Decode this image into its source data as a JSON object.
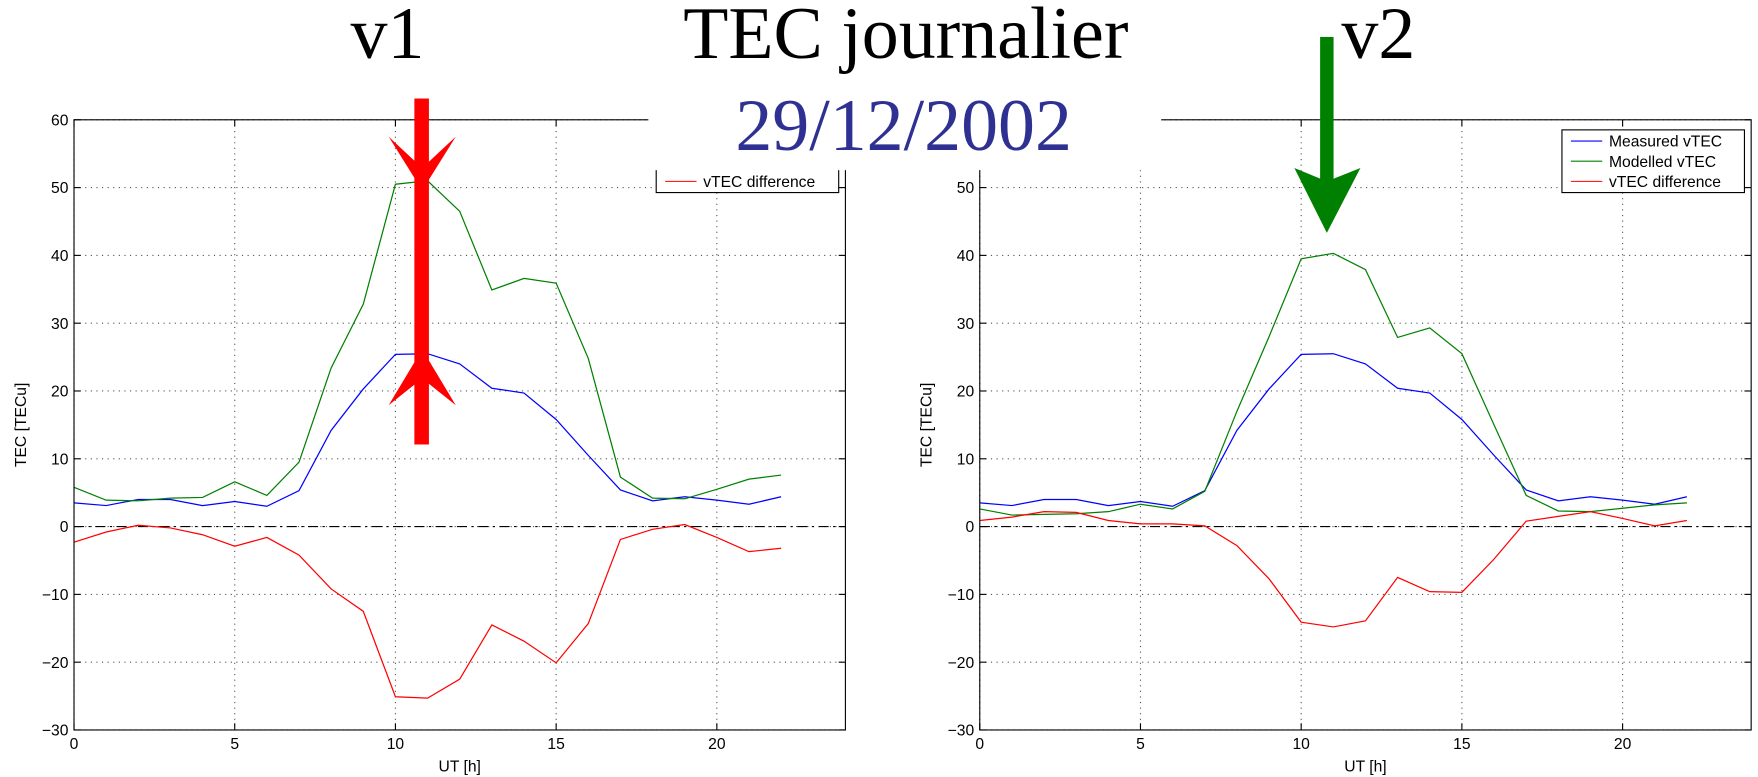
{
  "title": "TEC journalier",
  "date": "29/12/2002",
  "chart_data": [
    {
      "type": "line",
      "title": "v1",
      "xlabel": "UT [h]",
      "ylabel": "TEC [TECu]",
      "x": [
        0,
        1,
        2,
        3,
        4,
        5,
        6,
        7,
        8,
        9,
        10,
        11,
        12,
        13,
        14,
        15,
        16,
        17,
        18,
        19,
        20,
        21,
        22
      ],
      "xlim": [
        0,
        24
      ],
      "xticks": [
        0,
        5,
        10,
        15,
        20
      ],
      "ylim": [
        -30,
        60
      ],
      "yticks": [
        {
          "value": -30,
          "label": "−30"
        },
        {
          "value": -20,
          "label": "−20"
        },
        {
          "value": -10,
          "label": "−10"
        },
        0,
        10,
        20,
        30,
        40,
        50,
        60
      ],
      "grid": true,
      "zero_line": true,
      "legend": "upper right",
      "series": [
        {
          "name": "Measured vTEC",
          "color": "#0000ff",
          "values": [
            3.5,
            3.1,
            4,
            4,
            3.1,
            3.7,
            3,
            5.3,
            14.2,
            20.3,
            25.4,
            25.5,
            24,
            20.4,
            19.7,
            15.8,
            10.5,
            5.4,
            3.8,
            4.4,
            3.9,
            3.3,
            4.4
          ]
        },
        {
          "name": "Modelled vTEC",
          "color": "#008000",
          "values": [
            5.8,
            3.9,
            3.8,
            4.2,
            4.3,
            6.6,
            4.6,
            9.5,
            23.4,
            32.8,
            50.5,
            51,
            46.5,
            34.9,
            36.6,
            35.9,
            24.8,
            7.3,
            4.2,
            4.1,
            5.5,
            7,
            7.6
          ]
        },
        {
          "name": "vTEC difference",
          "color": "#ff0000",
          "values": [
            -2.3,
            -0.8,
            0.2,
            -0.2,
            -1.2,
            -2.9,
            -1.6,
            -4.2,
            -9.2,
            -12.5,
            -25.1,
            -25.3,
            -22.5,
            -14.5,
            -16.9,
            -20.1,
            -14.3,
            -1.9,
            -0.4,
            0.3,
            -1.6,
            -3.7,
            -3.2
          ]
        }
      ]
    },
    {
      "type": "line",
      "title": "v2",
      "xlabel": "UT [h]",
      "ylabel": "TEC [TECu]",
      "x": [
        0,
        1,
        2,
        3,
        4,
        5,
        6,
        7,
        8,
        9,
        10,
        11,
        12,
        13,
        14,
        15,
        16,
        17,
        18,
        19,
        20,
        21,
        22
      ],
      "xlim": [
        0,
        24
      ],
      "xticks": [
        0,
        5,
        10,
        15,
        20
      ],
      "ylim": [
        -30,
        60
      ],
      "yticks": [
        {
          "value": -30,
          "label": "−30"
        },
        {
          "value": -20,
          "label": "−20"
        },
        {
          "value": -10,
          "label": "−10"
        },
        0,
        10,
        20,
        30,
        40,
        50,
        60
      ],
      "grid": true,
      "zero_line": true,
      "legend": "upper right",
      "series": [
        {
          "name": "Measured vTEC",
          "color": "#0000ff",
          "values": [
            3.5,
            3.1,
            4,
            4,
            3.1,
            3.7,
            3,
            5.3,
            14.2,
            20.3,
            25.4,
            25.5,
            24,
            20.4,
            19.7,
            15.8,
            10.5,
            5.4,
            3.8,
            4.4,
            3.9,
            3.3,
            4.4
          ]
        },
        {
          "name": "Modelled vTEC",
          "color": "#008000",
          "values": [
            2.6,
            1.7,
            1.8,
            1.9,
            2.2,
            3.3,
            2.6,
            5.2,
            17,
            28,
            39.5,
            40.3,
            37.9,
            27.9,
            29.3,
            25.5,
            15,
            4.6,
            2.3,
            2.2,
            2.7,
            3.2,
            3.5
          ]
        },
        {
          "name": "vTEC difference",
          "color": "#ff0000",
          "values": [
            0.9,
            1.4,
            2.2,
            2.1,
            0.9,
            0.4,
            0.4,
            0.1,
            -2.8,
            -7.7,
            -14.1,
            -14.8,
            -13.9,
            -7.5,
            -9.6,
            -9.7,
            -4.8,
            0.8,
            1.5,
            2.2,
            1.2,
            0.1,
            0.9
          ]
        }
      ]
    }
  ]
}
